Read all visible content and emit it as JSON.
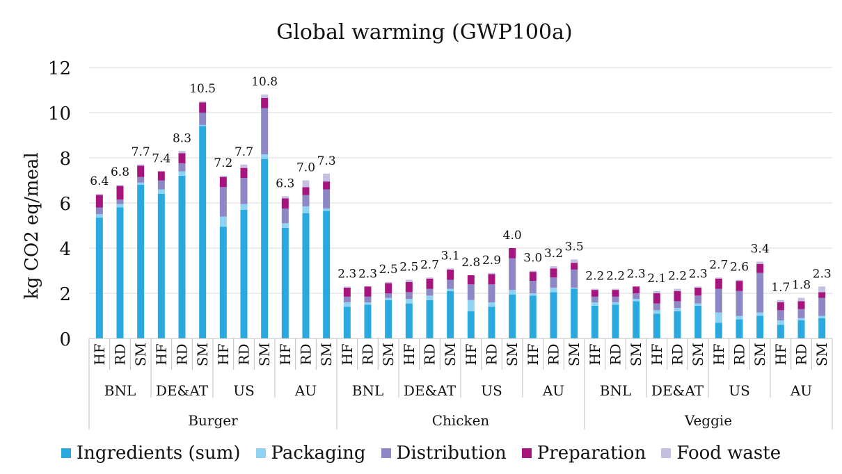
{
  "chart_data": {
    "type": "bar",
    "stacked": true,
    "title": "Global warming (GWP100a)",
    "ylabel": "kg CO2 eq/meal",
    "xlabel": "",
    "ylim": [
      0,
      12
    ],
    "yticks": [
      "0",
      "2",
      "4",
      "6",
      "8",
      "10",
      "12"
    ],
    "grid": true,
    "legend_position": "bottom",
    "groups": [
      {
        "label": "Burger",
        "subgroups": [
          {
            "label": "BNL",
            "categories": [
              "HF",
              "RD",
              "SM"
            ]
          },
          {
            "label": "DE&AT",
            "categories": [
              "HF",
              "RD",
              "SM"
            ]
          },
          {
            "label": "US",
            "categories": [
              "HF",
              "RD",
              "SM"
            ]
          },
          {
            "label": "AU",
            "categories": [
              "HF",
              "RD",
              "SM"
            ]
          }
        ]
      },
      {
        "label": "Chicken",
        "subgroups": [
          {
            "label": "BNL",
            "categories": [
              "HF",
              "RD",
              "SM"
            ]
          },
          {
            "label": "DE&AT",
            "categories": [
              "HF",
              "RD",
              "SM"
            ]
          },
          {
            "label": "US",
            "categories": [
              "HF",
              "RD",
              "SM"
            ]
          },
          {
            "label": "AU",
            "categories": [
              "HF",
              "RD",
              "SM"
            ]
          }
        ]
      },
      {
        "label": "Veggie",
        "subgroups": [
          {
            "label": "BNL",
            "categories": [
              "HF",
              "RD",
              "SM"
            ]
          },
          {
            "label": "DE&AT",
            "categories": [
              "HF",
              "RD",
              "SM"
            ]
          },
          {
            "label": "US",
            "categories": [
              "HF",
              "RD",
              "SM"
            ]
          },
          {
            "label": "AU",
            "categories": [
              "HF",
              "RD",
              "SM"
            ]
          }
        ]
      }
    ],
    "series": [
      {
        "name": "Ingredients (sum)",
        "color": "#29a9e0",
        "values": [
          5.35,
          5.8,
          6.8,
          6.4,
          7.2,
          9.4,
          4.95,
          5.7,
          7.95,
          4.9,
          5.55,
          5.65,
          1.4,
          1.5,
          1.7,
          1.55,
          1.7,
          2.1,
          1.2,
          1.4,
          1.95,
          1.9,
          2.05,
          2.2,
          1.45,
          1.5,
          1.65,
          1.1,
          1.2,
          1.45,
          0.7,
          0.85,
          1.0,
          0.6,
          0.8,
          0.9
        ]
      },
      {
        "name": "Packaging",
        "color": "#8fd3f3",
        "values": [
          0.15,
          0.15,
          0.1,
          0.2,
          0.2,
          0.05,
          0.45,
          0.25,
          0.2,
          0.2,
          0.3,
          0.1,
          0.2,
          0.1,
          0.1,
          0.2,
          0.2,
          0.1,
          0.5,
          0.2,
          0.2,
          0.1,
          0.2,
          0.05,
          0.15,
          0.1,
          0.1,
          0.15,
          0.15,
          0.1,
          0.45,
          0.15,
          0.15,
          0.2,
          0.1,
          0.1
        ]
      },
      {
        "name": "Distribution",
        "color": "#8e87c6",
        "values": [
          0.3,
          0.2,
          0.25,
          0.4,
          0.35,
          0.55,
          1.3,
          1.15,
          2.05,
          0.65,
          0.5,
          0.85,
          0.25,
          0.25,
          0.2,
          0.3,
          0.3,
          0.4,
          0.7,
          0.8,
          1.4,
          0.55,
          0.45,
          0.8,
          0.25,
          0.25,
          0.25,
          0.3,
          0.3,
          0.35,
          1.05,
          1.1,
          1.75,
          0.45,
          0.4,
          0.8
        ]
      },
      {
        "name": "Preparation",
        "color": "#a5157d",
        "values": [
          0.55,
          0.6,
          0.5,
          0.4,
          0.45,
          0.45,
          0.45,
          0.45,
          0.45,
          0.45,
          0.35,
          0.35,
          0.4,
          0.45,
          0.45,
          0.45,
          0.45,
          0.45,
          0.4,
          0.45,
          0.45,
          0.4,
          0.4,
          0.3,
          0.3,
          0.3,
          0.3,
          0.45,
          0.45,
          0.35,
          0.45,
          0.45,
          0.4,
          0.35,
          0.35,
          0.25
        ]
      },
      {
        "name": "Food waste",
        "color": "#c5bfe2",
        "values": [
          0.05,
          0.05,
          0.05,
          0.0,
          0.1,
          0.05,
          0.05,
          0.15,
          0.15,
          0.1,
          0.3,
          0.35,
          0.05,
          0.0,
          0.05,
          0.1,
          0.05,
          0.05,
          0.0,
          0.05,
          0.0,
          0.05,
          0.1,
          0.15,
          0.05,
          0.05,
          0.0,
          0.1,
          0.1,
          0.05,
          0.05,
          0.05,
          0.1,
          0.1,
          0.15,
          0.25
        ]
      }
    ],
    "totals": [
      "6.4",
      "6.8",
      "7.7",
      "7.4",
      "8.3",
      "10.5",
      "7.2",
      "7.7",
      "10.8",
      "6.3",
      "7.0",
      "7.3",
      "2.3",
      "2.3",
      "2.5",
      "2.5",
      "2.7",
      "3.1",
      "2.8",
      "2.9",
      "4.0",
      "3.0",
      "3.2",
      "3.5",
      "2.2",
      "2.2",
      "2.3",
      "2.1",
      "2.2",
      "2.3",
      "2.7",
      "2.6",
      "3.4",
      "1.7",
      "1.8",
      "2.3"
    ]
  }
}
